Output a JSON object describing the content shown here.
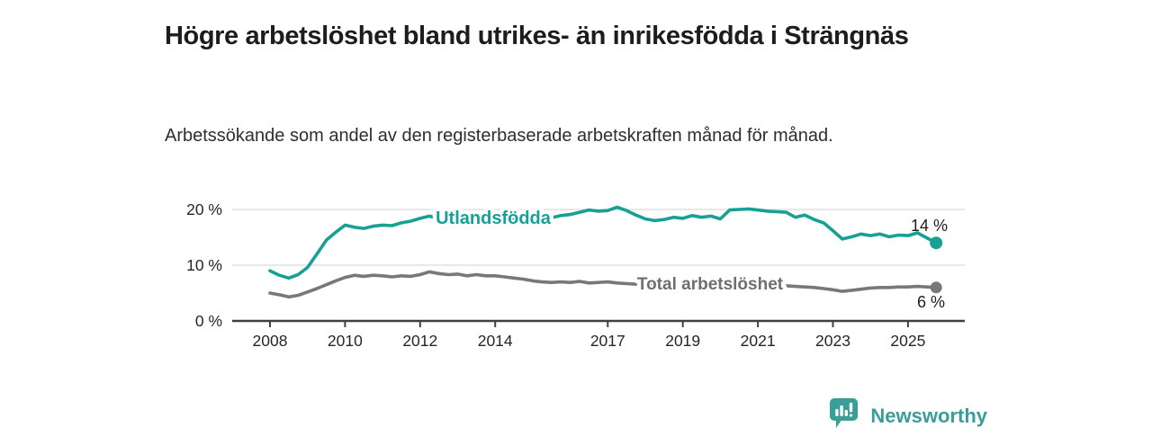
{
  "header": {
    "title": "Högre arbetslöshet bland utrikes- än inrikesfödda i Strängnäs",
    "subtitle": "Arbetssökande som andel av den registerbaserade arbetskraften månad för månad."
  },
  "chart_data": {
    "type": "line",
    "title": "Högre arbetslöshet bland utrikes- än inrikesfödda i Strängnäs",
    "subtitle": "Arbetssökande som andel av den registerbaserade arbetskraften månad för månad.",
    "legend_position": "inline-on-line",
    "grid": "horizontal",
    "x_start": 2008.0,
    "x_step": 0.25,
    "x_axis": {
      "ticks": [
        2008,
        2010,
        2012,
        2014,
        2017,
        2019,
        2021,
        2023,
        2025
      ],
      "tick_labels": [
        "2008",
        "2010",
        "2012",
        "2014",
        "2017",
        "2019",
        "2021",
        "2023",
        "2025"
      ]
    },
    "y_axis": {
      "ticks": [
        0,
        10,
        20
      ],
      "tick_labels": [
        "0 %",
        "10 %",
        "20 %"
      ],
      "ylim": [
        0,
        22
      ],
      "unit": "%"
    },
    "series": [
      {
        "name": "Utlandsfödda",
        "color": "#16a096",
        "end_value": 14,
        "end_label": "14 %",
        "values": [
          9.0,
          8.2,
          7.7,
          8.3,
          9.6,
          12.0,
          14.5,
          15.9,
          17.2,
          16.8,
          16.6,
          17.0,
          17.2,
          17.1,
          17.6,
          17.9,
          18.4,
          18.8,
          18.3,
          18.5,
          18.3,
          18.5,
          18.2,
          18.4,
          18.2,
          18.5,
          18.4,
          18.6,
          18.4,
          18.7,
          18.5,
          18.9,
          19.1,
          19.5,
          19.9,
          19.7,
          19.8,
          20.4,
          19.8,
          19.0,
          18.3,
          18.0,
          18.2,
          18.6,
          18.4,
          18.9,
          18.6,
          18.8,
          18.3,
          19.9,
          20.0,
          20.1,
          19.9,
          19.7,
          19.6,
          19.5,
          18.6,
          19.0,
          18.2,
          17.6,
          16.2,
          14.7,
          15.1,
          15.6,
          15.3,
          15.6,
          15.1,
          15.4,
          15.3,
          15.8,
          14.9,
          14.0
        ]
      },
      {
        "name": "Total arbetslöshet",
        "color": "#787878",
        "end_value": 6,
        "end_label": "6 %",
        "values": [
          5.0,
          4.7,
          4.3,
          4.6,
          5.2,
          5.8,
          6.5,
          7.2,
          7.8,
          8.2,
          8.0,
          8.2,
          8.1,
          7.9,
          8.1,
          8.0,
          8.3,
          8.8,
          8.5,
          8.3,
          8.4,
          8.1,
          8.3,
          8.1,
          8.1,
          7.9,
          7.7,
          7.5,
          7.2,
          7.0,
          6.9,
          7.0,
          6.9,
          7.1,
          6.8,
          6.9,
          7.0,
          6.8,
          6.7,
          6.6,
          6.6,
          6.5,
          6.4,
          6.4,
          6.3,
          6.2,
          6.3,
          6.5,
          6.8,
          7.3,
          7.4,
          7.2,
          7.0,
          6.7,
          6.5,
          6.3,
          6.2,
          6.1,
          6.0,
          5.8,
          5.6,
          5.3,
          5.5,
          5.7,
          5.9,
          6.0,
          6.0,
          6.1,
          6.1,
          6.2,
          6.1,
          6.0
        ]
      }
    ]
  },
  "colors": {
    "accent_teal": "#16a096",
    "line_gray": "#787878",
    "label_gray": "#6f6f6f",
    "title_text": "#1d1d1b",
    "axis": "#404040",
    "grid": "#d9d9d9",
    "tick_text": "#262626",
    "brand_teal": "#3a9e96"
  },
  "footer": {
    "brand": "Newsworthy"
  }
}
